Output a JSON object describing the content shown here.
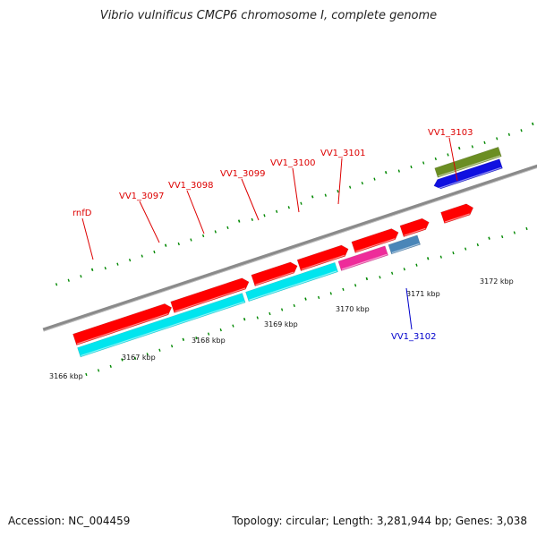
{
  "title": "Vibrio vulnificus CMCP6 chromosome I, complete genome",
  "footer": {
    "accession": "Accession: NC_004459",
    "summary": "Topology: circular; Length: 3,281,944 bp; Genes: 3,038"
  },
  "colors": {
    "backbone": "#8a8a8a",
    "tick": "#008800",
    "label_forward": "#dd0000",
    "label_reverse": "#0000cc",
    "cds": "#ff0000",
    "rna": "#00e5ee",
    "pink": "#ee2c9a",
    "steelblue": "#4a86b8",
    "blue": "#1010e0",
    "olive": "#6b8e23",
    "gray": "#cccccc"
  },
  "scale_labels": [
    "3166 kbp",
    "3167 kbp",
    "3168 kbp",
    "3169 kbp",
    "3170 kbp",
    "3171 kbp",
    "3172 kbp"
  ],
  "genes": [
    {
      "name": "rnfD",
      "strand": "forward"
    },
    {
      "name": "VV1_3097",
      "strand": "forward"
    },
    {
      "name": "VV1_3098",
      "strand": "forward"
    },
    {
      "name": "VV1_3099",
      "strand": "forward"
    },
    {
      "name": "VV1_3100",
      "strand": "forward"
    },
    {
      "name": "VV1_3101",
      "strand": "forward"
    },
    {
      "name": "VV1_3102",
      "strand": "reverse"
    },
    {
      "name": "VV1_3103",
      "strand": "forward"
    }
  ]
}
